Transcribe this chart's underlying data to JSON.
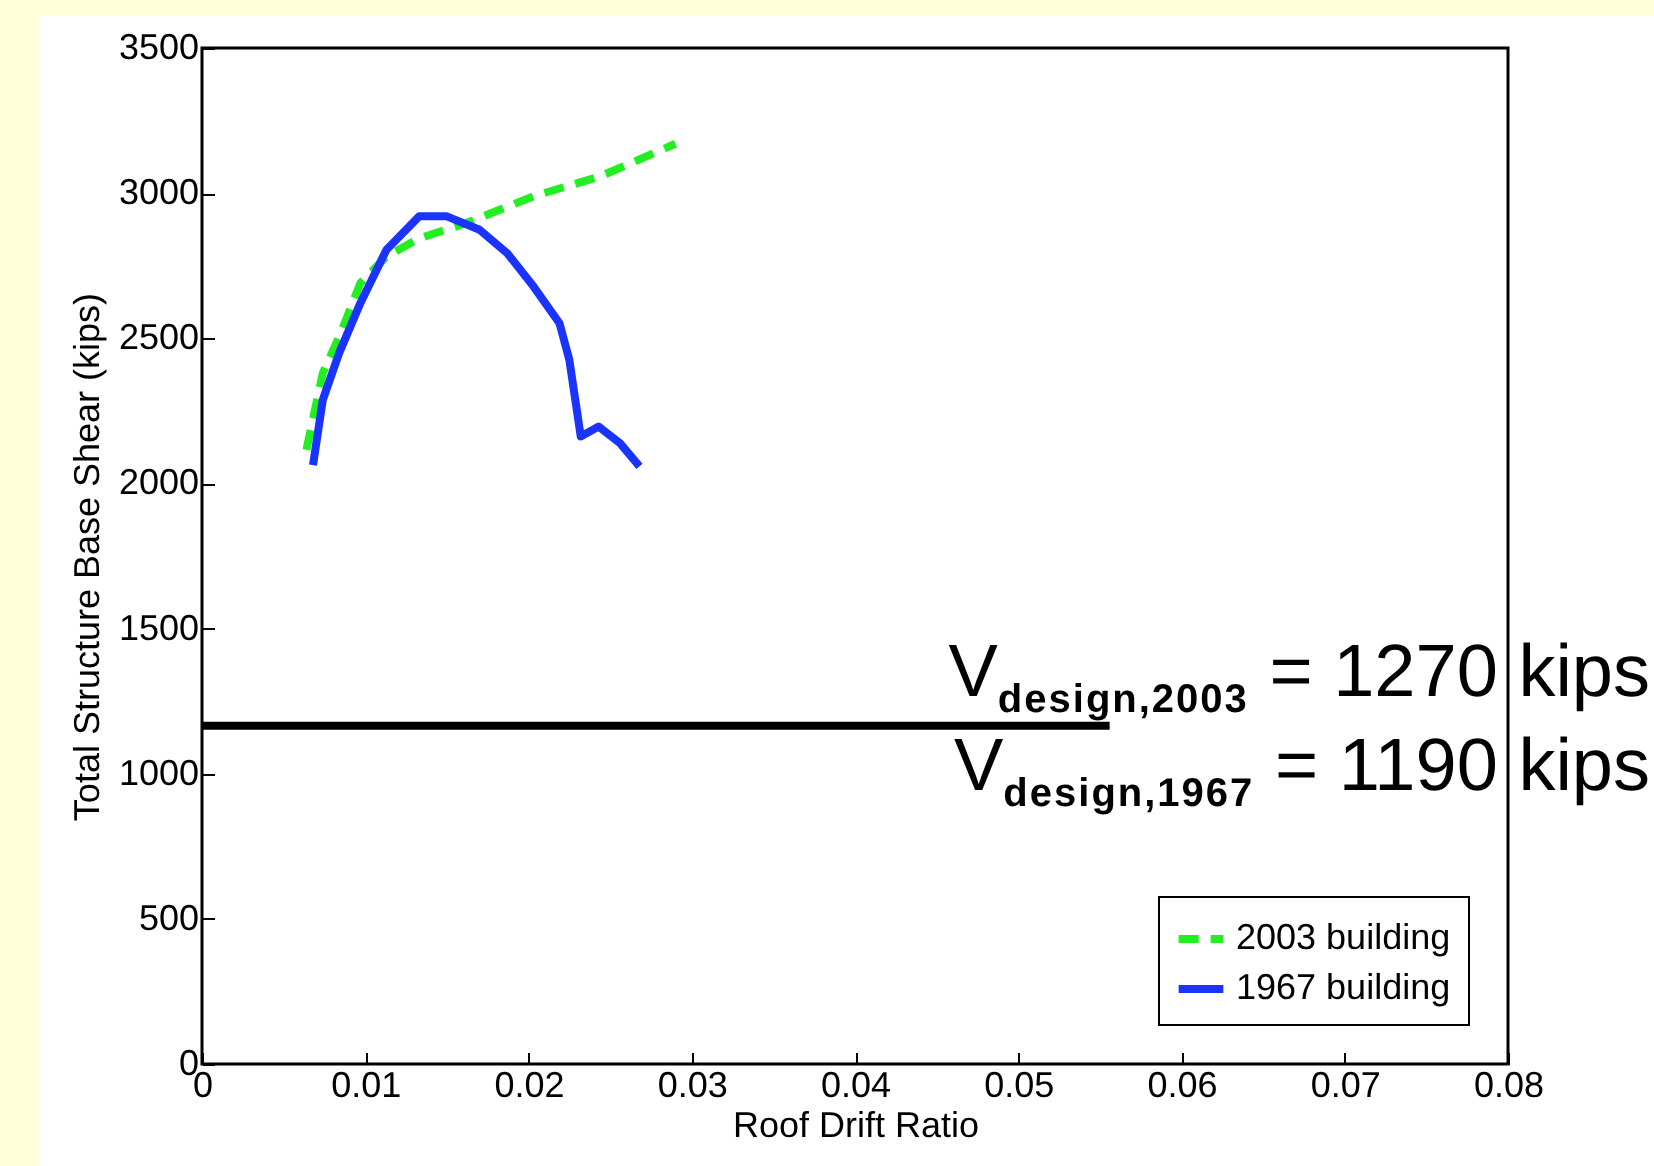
{
  "chart_data": {
    "type": "line",
    "xlabel": "Roof Drift Ratio",
    "ylabel": "Total Structure Base Shear (kips)",
    "xlim": [
      0,
      0.08
    ],
    "xticks": [
      0,
      0.01,
      0.02,
      0.03,
      0.04,
      0.05,
      0.06,
      0.07,
      0.08
    ],
    "ylim": [
      0,
      3500
    ],
    "yticks": [
      0,
      500,
      1000,
      1500,
      2000,
      2500,
      3000,
      3500
    ],
    "legend": "bottom right",
    "annotations": [
      "V$_{design,2003}$ = 1270 kips",
      "V$_{design,1967}$ = 1190 kips"
    ],
    "series": [
      {
        "name": "2003 building",
        "color": "#22ee22",
        "line_style": "dashed",
        "x": [
          0.0064,
          0.0074,
          0.0085,
          0.0097,
          0.0113,
          0.0133,
          0.0162,
          0.0203,
          0.0244,
          0.029
        ],
        "values": [
          2116,
          2380,
          2518,
          2690,
          2782,
          2844,
          2897,
          2989,
          3058,
          3170
        ]
      },
      {
        "name": "1967 building",
        "color": "#1a33ff",
        "line_style": "solid",
        "x": [
          0.0068,
          0.0074,
          0.0084,
          0.0097,
          0.0113,
          0.0133,
          0.015,
          0.017,
          0.0187,
          0.0203,
          0.0219,
          0.0225,
          0.0232,
          0.0243,
          0.0256,
          0.0268
        ],
        "values": [
          2063,
          2288,
          2449,
          2621,
          2805,
          2920,
          2920,
          2874,
          2793,
          2679,
          2552,
          2426,
          2162,
          2196,
          2139,
          2059
        ]
      },
      {
        "color": "#000000",
        "line_style": "solid",
        "x": [
          0,
          0.0556
        ],
        "values": [
          1165,
          1165
        ]
      }
    ]
  }
}
